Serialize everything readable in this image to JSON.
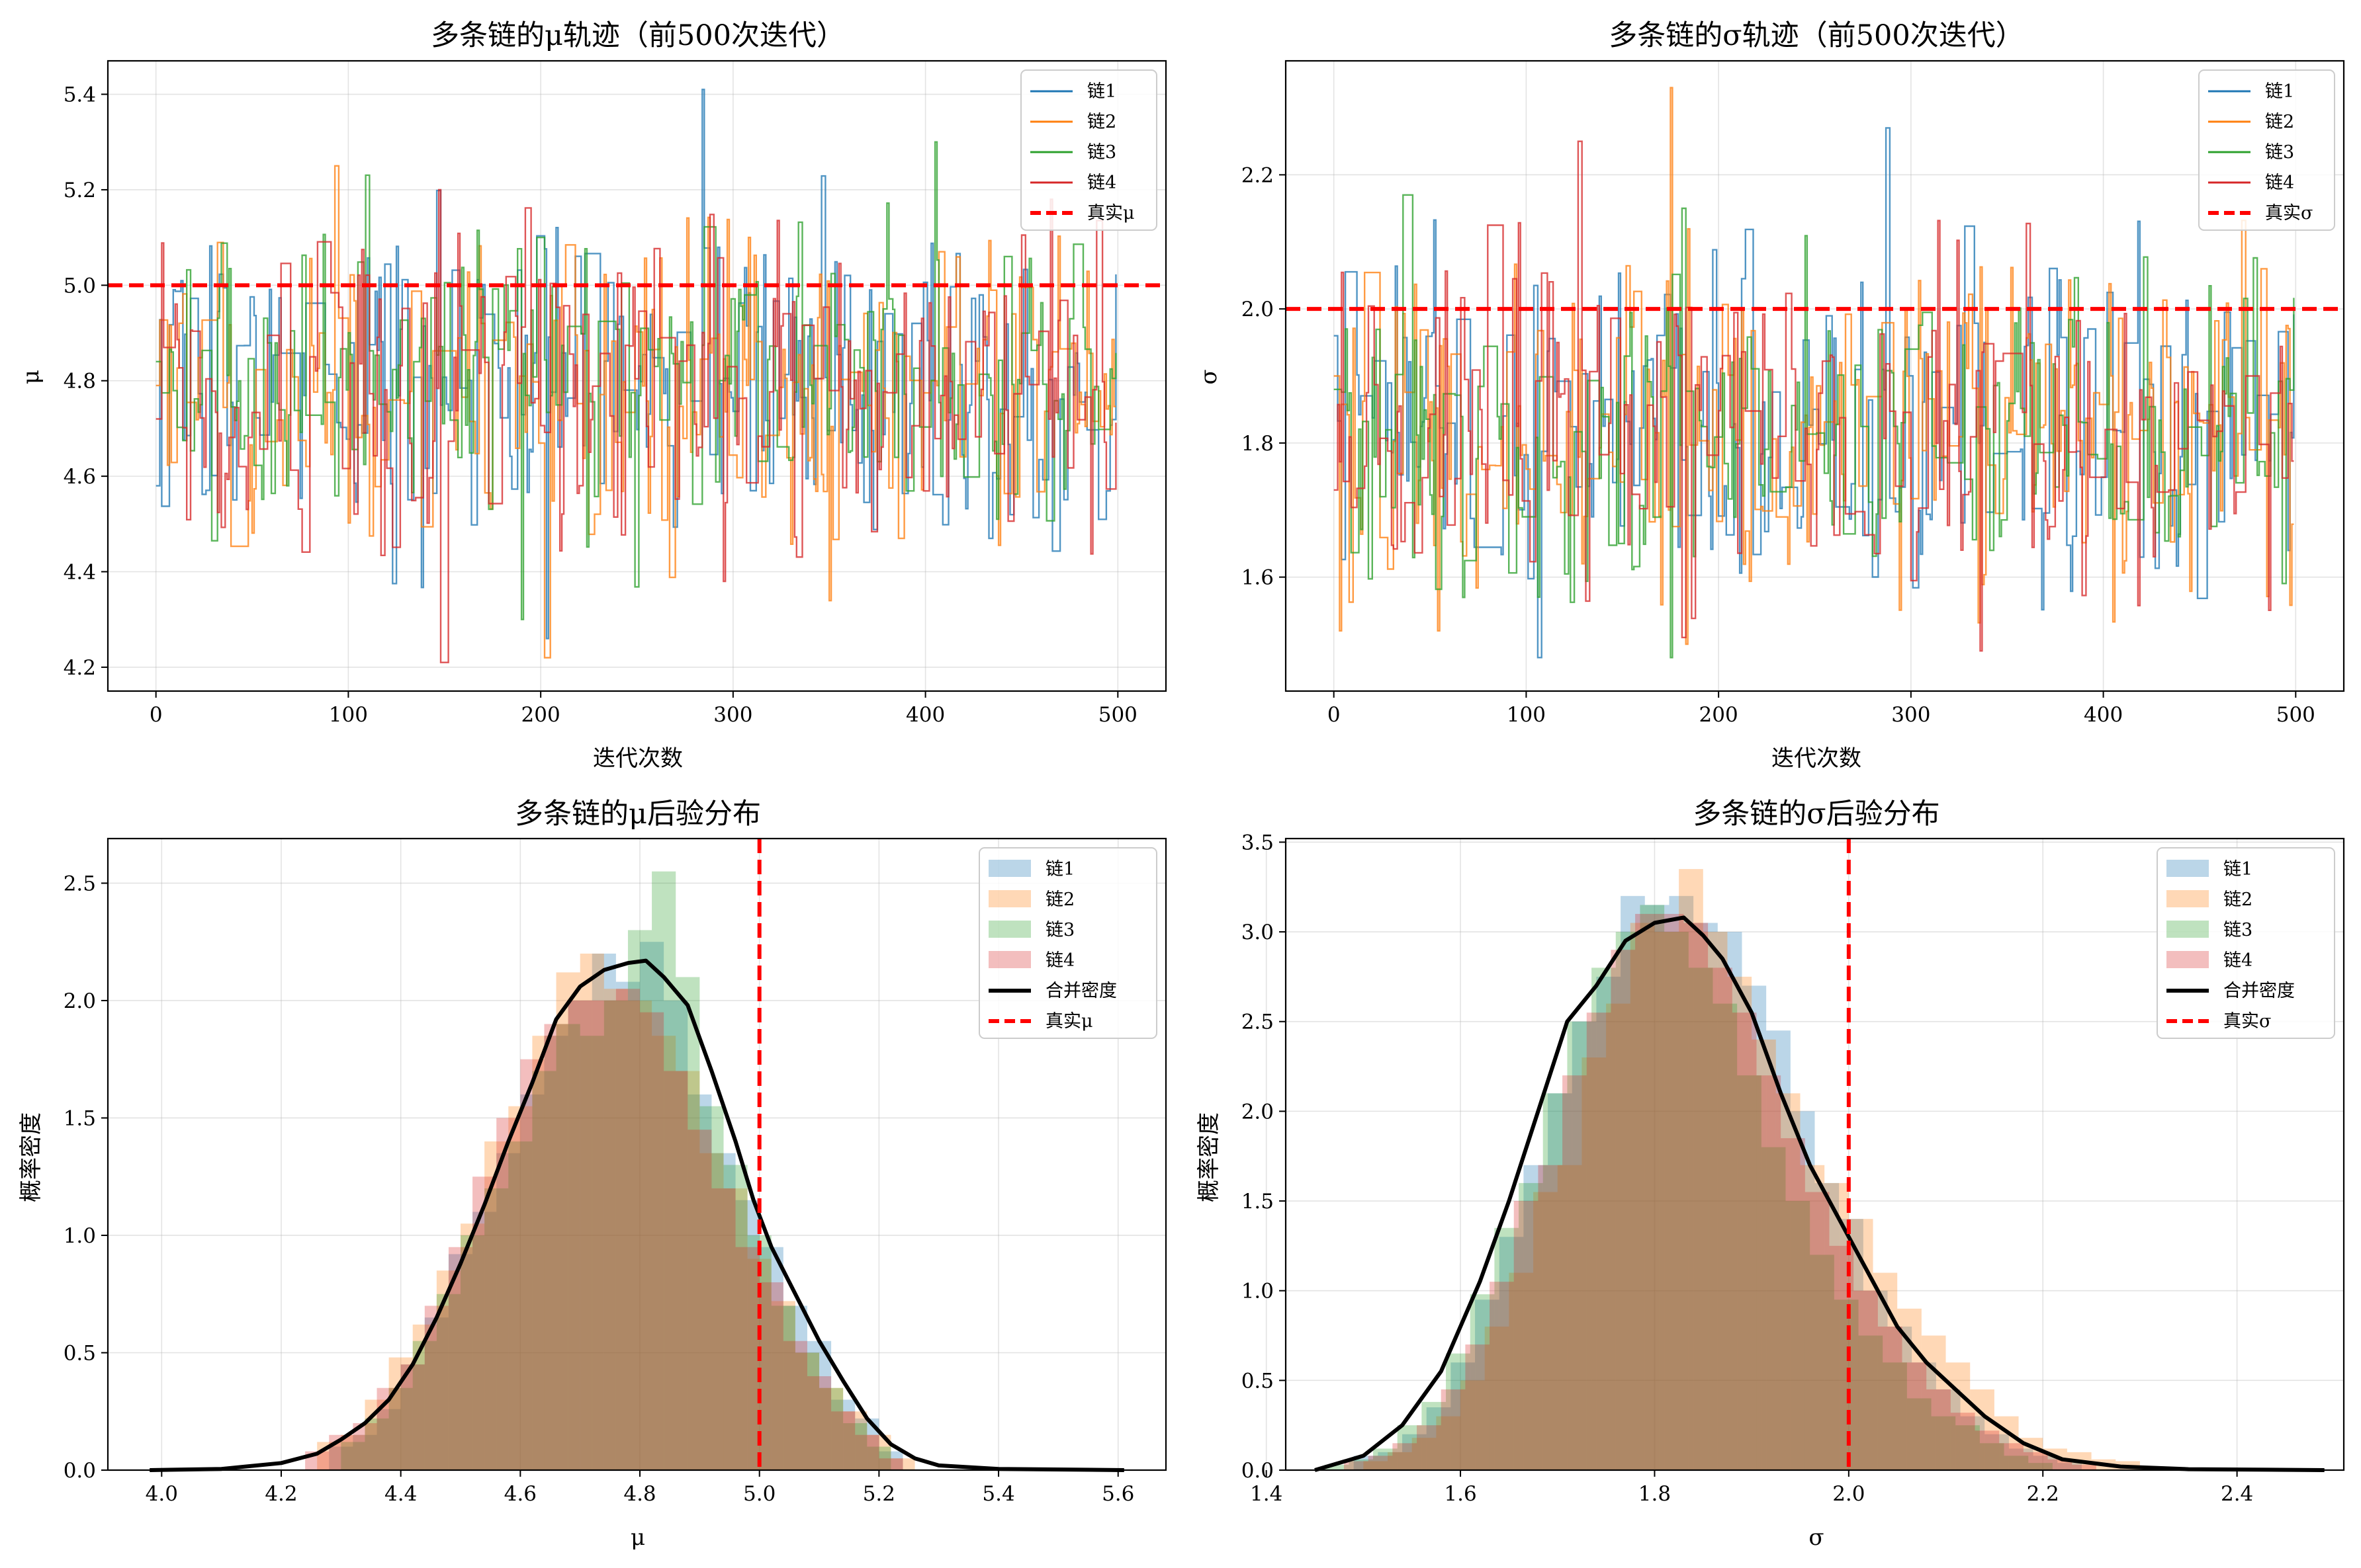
{
  "colors": {
    "chain1": "#1f77b4",
    "chain2": "#ff7f0e",
    "chain3": "#2ca02c",
    "chain4": "#d62728",
    "true_line": "#ff0000",
    "combined": "#000000"
  },
  "chart_data": [
    {
      "type": "line",
      "title": "多条链的μ轨迹（前500次迭代）",
      "xlabel": "迭代次数",
      "ylabel": "μ",
      "xlim": [
        -25,
        525
      ],
      "ylim": [
        4.15,
        5.47
      ],
      "xticks": [
        "0",
        "100",
        "200",
        "300",
        "400",
        "500"
      ],
      "yticks": [
        "4.2",
        "4.4",
        "4.6",
        "4.8",
        "5.0",
        "5.2",
        "5.4"
      ],
      "grid": true,
      "legend_position": "top-right",
      "n_iterations": 500,
      "series": [
        {
          "name": "链1",
          "color": "#1f77b4",
          "start": 4.58,
          "mean": 4.8,
          "spread": 0.16,
          "max": 5.41,
          "min": 4.26,
          "peak_at": 284,
          "trough_at": 203
        },
        {
          "name": "链2",
          "color": "#ff7f0e",
          "start": 4.79,
          "mean": 4.78,
          "spread": 0.17,
          "max": 5.25,
          "min": 4.22,
          "peak_at": 93,
          "trough_at": 202
        },
        {
          "name": "链3",
          "color": "#2ca02c",
          "start": 4.84,
          "mean": 4.8,
          "spread": 0.16,
          "max": 5.3,
          "min": 4.3,
          "peak_at": 405,
          "trough_at": 190
        },
        {
          "name": "链4",
          "color": "#d62728",
          "start": 4.72,
          "mean": 4.78,
          "spread": 0.17,
          "max": 5.2,
          "min": 4.21,
          "peak_at": 147,
          "trough_at": 148
        }
      ],
      "reference_line": {
        "name": "真实μ",
        "value": 5.0
      }
    },
    {
      "type": "line",
      "title": "多条链的σ轨迹（前500次迭代）",
      "xlabel": "迭代次数",
      "ylabel": "σ",
      "xlim": [
        -25,
        525
      ],
      "ylim": [
        1.43,
        2.37
      ],
      "xticks": [
        "0",
        "100",
        "200",
        "300",
        "400",
        "500"
      ],
      "yticks": [
        "1.6",
        "1.8",
        "2.0",
        "2.2"
      ],
      "grid": true,
      "legend_position": "top-right",
      "n_iterations": 500,
      "series": [
        {
          "name": "链1",
          "color": "#1f77b4",
          "start": 1.96,
          "mean": 1.82,
          "spread": 0.12,
          "max": 2.27,
          "min": 1.48,
          "peak_at": 287,
          "trough_at": 106
        },
        {
          "name": "链2",
          "color": "#ff7f0e",
          "start": 1.9,
          "mean": 1.82,
          "spread": 0.13,
          "max": 2.33,
          "min": 1.5,
          "peak_at": 175,
          "trough_at": 183
        },
        {
          "name": "链3",
          "color": "#2ca02c",
          "start": 1.88,
          "mean": 1.82,
          "spread": 0.12,
          "max": 2.17,
          "min": 1.48,
          "peak_at": 36,
          "trough_at": 175
        },
        {
          "name": "链4",
          "color": "#d62728",
          "start": 1.73,
          "mean": 1.82,
          "spread": 0.12,
          "max": 2.25,
          "min": 1.49,
          "peak_at": 127,
          "trough_at": 336
        }
      ],
      "reference_line": {
        "name": "真实σ",
        "value": 2.0
      }
    },
    {
      "type": "area",
      "title": "多条链的μ后验分布",
      "xlabel": "μ",
      "ylabel": "概率密度",
      "xlim": [
        3.91,
        5.68
      ],
      "ylim": [
        0,
        2.69
      ],
      "xticks": [
        "4.0",
        "4.2",
        "4.4",
        "4.6",
        "4.8",
        "5.0",
        "5.2",
        "5.4",
        "5.6"
      ],
      "yticks": [
        "0.0",
        "0.5",
        "1.0",
        "1.5",
        "2.0",
        "2.5"
      ],
      "grid": true,
      "legend_position": "top-right",
      "histograms": [
        {
          "name": "链1",
          "color": "#1f77b4",
          "bins": [
            4.28,
            4.32,
            4.36,
            4.4,
            4.44,
            4.48,
            4.52,
            4.56,
            4.6,
            4.64,
            4.68,
            4.72,
            4.76,
            4.8,
            4.84,
            4.88,
            4.92,
            4.96,
            5.0,
            5.04,
            5.08,
            5.12,
            5.16,
            5.2,
            5.24
          ],
          "values": [
            0.1,
            0.15,
            0.26,
            0.45,
            0.65,
            0.92,
            1.1,
            1.35,
            1.6,
            1.85,
            2.0,
            2.2,
            2.08,
            2.25,
            2.0,
            1.6,
            1.35,
            1.15,
            0.95,
            0.7,
            0.55,
            0.3,
            0.22,
            0.08,
            0.0
          ]
        },
        {
          "name": "链2",
          "color": "#ff7f0e",
          "bins": [
            4.26,
            4.3,
            4.34,
            4.38,
            4.42,
            4.46,
            4.5,
            4.54,
            4.58,
            4.62,
            4.66,
            4.7,
            4.74,
            4.78,
            4.82,
            4.86,
            4.9,
            4.94,
            4.98,
            5.02,
            5.06,
            5.1,
            5.14,
            5.18,
            5.22,
            5.26
          ],
          "values": [
            0.12,
            0.15,
            0.3,
            0.48,
            0.62,
            0.85,
            1.05,
            1.4,
            1.55,
            1.85,
            2.12,
            2.2,
            2.05,
            2.0,
            1.85,
            1.7,
            1.35,
            1.2,
            0.9,
            0.72,
            0.5,
            0.35,
            0.25,
            0.15,
            0.05,
            0.0
          ]
        },
        {
          "name": "链3",
          "color": "#2ca02c",
          "bins": [
            4.3,
            4.34,
            4.38,
            4.42,
            4.46,
            4.5,
            4.54,
            4.58,
            4.62,
            4.66,
            4.7,
            4.74,
            4.78,
            4.82,
            4.86,
            4.9,
            4.94,
            4.98,
            5.02,
            5.06,
            5.1,
            5.14,
            5.18,
            5.22
          ],
          "values": [
            0.12,
            0.22,
            0.35,
            0.55,
            0.75,
            1.0,
            1.2,
            1.4,
            1.7,
            1.9,
            1.85,
            2.0,
            2.3,
            2.55,
            2.1,
            1.55,
            1.3,
            1.0,
            0.7,
            0.5,
            0.35,
            0.2,
            0.1,
            0.0
          ]
        },
        {
          "name": "链4",
          "color": "#d62728",
          "bins": [
            4.24,
            4.28,
            4.32,
            4.36,
            4.4,
            4.44,
            4.48,
            4.52,
            4.56,
            4.6,
            4.64,
            4.68,
            4.72,
            4.76,
            4.8,
            4.84,
            4.88,
            4.92,
            4.96,
            5.0,
            5.04,
            5.08,
            5.12,
            5.16,
            5.2,
            5.24
          ],
          "values": [
            0.08,
            0.15,
            0.2,
            0.35,
            0.45,
            0.7,
            0.95,
            1.25,
            1.5,
            1.75,
            1.9,
            2.0,
            2.0,
            2.05,
            1.95,
            1.7,
            1.45,
            1.2,
            0.95,
            0.8,
            0.55,
            0.4,
            0.25,
            0.15,
            0.05,
            0.0
          ]
        }
      ],
      "combined_density": {
        "name": "合并密度",
        "x": [
          3.98,
          4.1,
          4.2,
          4.26,
          4.3,
          4.34,
          4.38,
          4.42,
          4.46,
          4.5,
          4.54,
          4.58,
          4.62,
          4.66,
          4.7,
          4.74,
          4.78,
          4.81,
          4.84,
          4.88,
          4.92,
          4.96,
          4.99,
          5.02,
          5.06,
          5.1,
          5.14,
          5.18,
          5.22,
          5.26,
          5.3,
          5.4,
          5.61
        ],
        "y": [
          0.0,
          0.005,
          0.03,
          0.07,
          0.13,
          0.2,
          0.3,
          0.45,
          0.65,
          0.88,
          1.13,
          1.4,
          1.65,
          1.92,
          2.06,
          2.13,
          2.16,
          2.17,
          2.1,
          1.98,
          1.7,
          1.4,
          1.15,
          0.95,
          0.75,
          0.55,
          0.38,
          0.22,
          0.11,
          0.05,
          0.02,
          0.005,
          0.0
        ]
      },
      "reference_line": {
        "name": "真实μ",
        "value": 5.0
      }
    },
    {
      "type": "area",
      "title": "多条链的σ后验分布",
      "xlabel": "σ",
      "ylabel": "概率密度",
      "xlim": [
        1.42,
        2.51
      ],
      "ylim": [
        0,
        3.52
      ],
      "xticks": [
        "1.4",
        "1.6",
        "1.8",
        "2.0",
        "2.2",
        "2.4"
      ],
      "yticks": [
        "0.0",
        "0.5",
        "1.0",
        "1.5",
        "2.0",
        "2.5",
        "3.0",
        "3.5"
      ],
      "grid": true,
      "legend_position": "top-right",
      "histograms": [
        {
          "name": "链1",
          "color": "#1f77b4",
          "bins": [
            1.49,
            1.515,
            1.54,
            1.565,
            1.59,
            1.615,
            1.64,
            1.665,
            1.69,
            1.715,
            1.74,
            1.765,
            1.79,
            1.815,
            1.84,
            1.865,
            1.89,
            1.915,
            1.94,
            1.965,
            1.99,
            2.015,
            2.04,
            2.065,
            2.09,
            2.115,
            2.14,
            2.165,
            2.19,
            2.215,
            2.24
          ],
          "values": [
            0.08,
            0.1,
            0.2,
            0.35,
            0.6,
            0.95,
            1.3,
            1.7,
            2.1,
            2.5,
            2.75,
            3.2,
            3.15,
            3.2,
            3.05,
            3.0,
            2.7,
            2.45,
            2.0,
            1.6,
            1.4,
            1.0,
            0.8,
            0.6,
            0.45,
            0.3,
            0.2,
            0.12,
            0.08,
            0.04,
            0.0
          ]
        },
        {
          "name": "链2",
          "color": "#ff7f0e",
          "bins": [
            1.5,
            1.525,
            1.55,
            1.575,
            1.6,
            1.625,
            1.65,
            1.675,
            1.7,
            1.725,
            1.75,
            1.775,
            1.8,
            1.825,
            1.85,
            1.875,
            1.9,
            1.925,
            1.95,
            1.975,
            2.0,
            2.025,
            2.05,
            2.075,
            2.1,
            2.125,
            2.15,
            2.175,
            2.2,
            2.225,
            2.25,
            2.275,
            2.3
          ],
          "values": [
            0.05,
            0.1,
            0.18,
            0.3,
            0.5,
            0.8,
            1.1,
            1.55,
            1.7,
            2.3,
            2.6,
            3.05,
            3.0,
            3.35,
            3.0,
            2.75,
            2.4,
            2.1,
            1.7,
            1.6,
            1.4,
            1.1,
            0.9,
            0.75,
            0.6,
            0.45,
            0.3,
            0.18,
            0.12,
            0.1,
            0.06,
            0.05,
            0.0
          ]
        },
        {
          "name": "链3",
          "color": "#2ca02c",
          "bins": [
            1.46,
            1.485,
            1.51,
            1.535,
            1.56,
            1.585,
            1.61,
            1.635,
            1.66,
            1.685,
            1.71,
            1.735,
            1.76,
            1.785,
            1.81,
            1.835,
            1.86,
            1.885,
            1.91,
            1.935,
            1.96,
            1.985,
            2.01,
            2.035,
            2.06,
            2.085,
            2.11,
            2.135,
            2.16,
            2.185,
            2.21
          ],
          "values": [
            0.03,
            0.06,
            0.12,
            0.25,
            0.38,
            0.65,
            0.98,
            1.35,
            1.6,
            2.1,
            2.5,
            2.8,
            3.0,
            3.15,
            3.0,
            2.8,
            2.6,
            2.2,
            1.8,
            1.5,
            1.2,
            0.95,
            0.75,
            0.6,
            0.4,
            0.3,
            0.25,
            0.15,
            0.08,
            0.04,
            0.0
          ]
        },
        {
          "name": "链4",
          "color": "#d62728",
          "bins": [
            1.48,
            1.505,
            1.53,
            1.555,
            1.58,
            1.605,
            1.63,
            1.655,
            1.68,
            1.705,
            1.73,
            1.755,
            1.78,
            1.805,
            1.83,
            1.855,
            1.88,
            1.905,
            1.93,
            1.955,
            1.98,
            2.005,
            2.03,
            2.055,
            2.08,
            2.105,
            2.13,
            2.155,
            2.18,
            2.205,
            2.23,
            2.255
          ],
          "values": [
            0.05,
            0.08,
            0.15,
            0.25,
            0.45,
            0.7,
            1.05,
            1.5,
            1.7,
            2.2,
            2.55,
            2.9,
            3.1,
            3.1,
            3.05,
            2.8,
            2.55,
            2.2,
            1.85,
            1.55,
            1.25,
            1.0,
            0.8,
            0.6,
            0.45,
            0.32,
            0.22,
            0.15,
            0.1,
            0.06,
            0.03,
            0.0
          ]
        }
      ],
      "combined_density": {
        "name": "合并密度",
        "x": [
          1.45,
          1.5,
          1.54,
          1.58,
          1.62,
          1.65,
          1.68,
          1.71,
          1.74,
          1.77,
          1.8,
          1.83,
          1.85,
          1.87,
          1.9,
          1.93,
          1.96,
          1.99,
          2.02,
          2.05,
          2.08,
          2.11,
          2.14,
          2.18,
          2.22,
          2.28,
          2.35,
          2.49
        ],
        "y": [
          0.0,
          0.08,
          0.25,
          0.55,
          1.05,
          1.5,
          2.0,
          2.5,
          2.7,
          2.95,
          3.05,
          3.08,
          2.98,
          2.85,
          2.55,
          2.1,
          1.7,
          1.4,
          1.1,
          0.8,
          0.6,
          0.45,
          0.3,
          0.15,
          0.06,
          0.02,
          0.005,
          0.0
        ]
      },
      "reference_line": {
        "name": "真实σ",
        "value": 2.0
      }
    }
  ]
}
